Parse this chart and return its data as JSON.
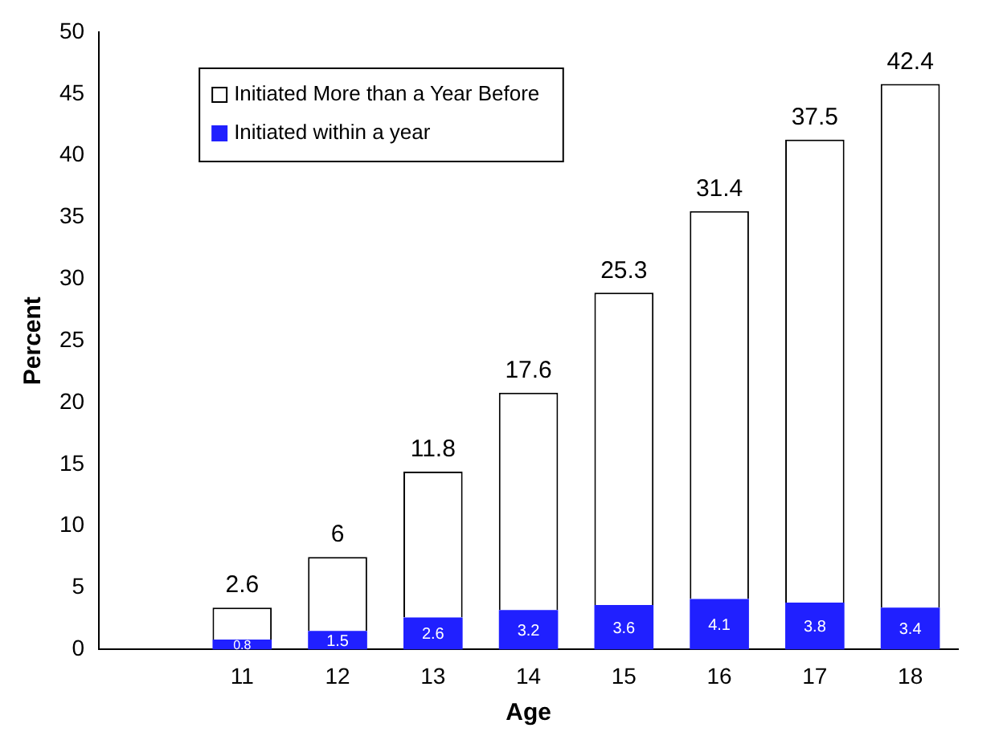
{
  "chart_data": {
    "type": "bar",
    "stacked": true,
    "xlabel": "Age",
    "ylabel": "Percent",
    "categories": [
      null,
      "11",
      "12",
      "13",
      "14",
      "15",
      "16",
      "17",
      "18"
    ],
    "series": [
      {
        "name": "Initiated within a year",
        "color": "#2020ff",
        "values": [
          null,
          0.8,
          1.5,
          2.6,
          3.2,
          3.6,
          4.1,
          3.8,
          3.4
        ]
      },
      {
        "name": "Initiated More than a Year Before",
        "color": "#ffffff",
        "values": [
          null,
          2.6,
          6,
          11.8,
          17.6,
          25.3,
          31.4,
          37.5,
          42.4
        ]
      }
    ],
    "ylim": [
      0,
      50
    ],
    "yticks": [
      0,
      5,
      10,
      15,
      20,
      25,
      30,
      35,
      40,
      45,
      50
    ],
    "grid": false,
    "legend": "top left",
    "data_labels": true
  }
}
